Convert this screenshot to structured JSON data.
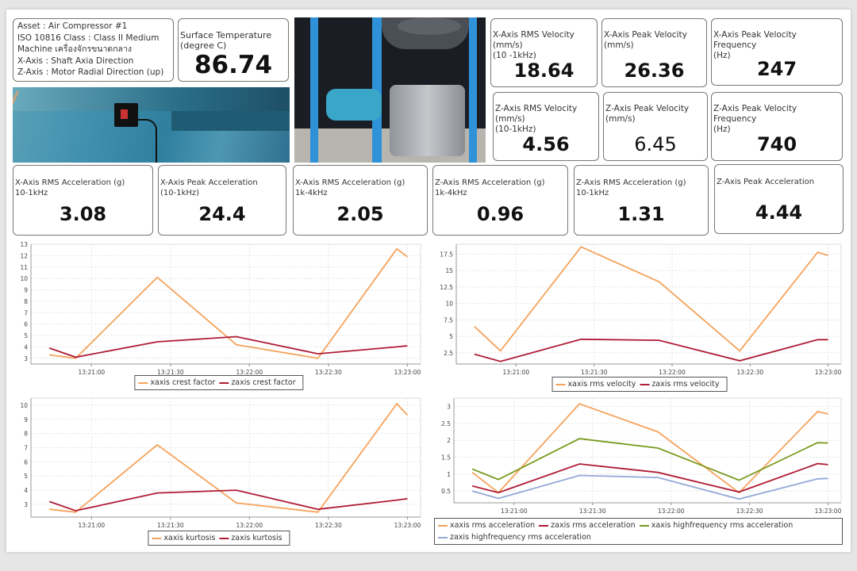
{
  "info": {
    "lines": [
      "Asset : Air Compressor #1",
      "ISO 10816 Class : Class II Medium",
      "Machine เครื่องจักรขนาดกลาง",
      "X-Axis : Shaft Axia Direction",
      "Z-Axis : Motor Radial Direction (up)"
    ]
  },
  "temperature": {
    "label": "Surface Temperature\n(degree C)",
    "value": "86.74"
  },
  "metrics": [
    {
      "label": "X-Axis RMS Velocity\n(mm/s)\n(10 -1kHz)",
      "value": "18.64"
    },
    {
      "label": "X-Axis Peak Velocity\n(mm/s)",
      "value": "26.36"
    },
    {
      "label": "X-Axis Peak Velocity Frequency\n(Hz)",
      "value": "247"
    },
    {
      "label": "Z-Axis RMS Velocity\n(mm/s)\n(10-1kHz)",
      "value": "4.56"
    },
    {
      "label": "Z-Axis Peak Velocity\n(mm/s)",
      "value": "6.45"
    },
    {
      "label": "Z-Axis Peak Velocity Frequency\n(Hz)",
      "value": "740"
    },
    {
      "label": "X-Axis RMS Acceleration (g)\n10-1kHz",
      "value": "3.08"
    },
    {
      "label": "X-Axis Peak Acceleration\n(10-1kHz)",
      "value": "24.4"
    },
    {
      "label": "X-Axis RMS Acceleration (g)\n1k-4kHz",
      "value": "2.05"
    },
    {
      "label": "Z-Axis RMS Acceleration (g)\n1k-4kHz",
      "value": "0.96"
    },
    {
      "label": "Z-Axis RMS Acceleration (g)\n10-1kHz",
      "value": "1.31"
    },
    {
      "label": "Z-Axis Peak Acceleration",
      "value": "4.44"
    }
  ],
  "colors": {
    "orange": "#f5a35c",
    "red": "#b01c35",
    "green": "#7a9a1e",
    "blue": "#94a8d8"
  },
  "chart_data": [
    {
      "type": "line",
      "x": [
        "13:20:44",
        "13:20:54",
        "13:21:25",
        "13:21:55",
        "13:22:26",
        "13:22:56",
        "13:23:00"
      ],
      "xticks": [
        "13:21:00",
        "13:21:30",
        "13:22:00",
        "13:22:30",
        "13:23:00"
      ],
      "xlim": [
        "13:20:37",
        "13:23:05"
      ],
      "yticks": [
        3,
        4,
        5,
        6,
        7,
        8,
        9,
        10,
        11,
        12,
        13
      ],
      "ylim": [
        2.5,
        13
      ],
      "grid": true,
      "legend": "bottom",
      "series": [
        {
          "name": "xaxis crest factor",
          "color": "#f5a35c",
          "values": [
            3.3,
            3.0,
            10.1,
            4.2,
            3.0,
            12.6,
            11.9
          ]
        },
        {
          "name": "zaxis crest factor",
          "color": "#b01c35",
          "values": [
            3.9,
            3.1,
            4.45,
            4.9,
            3.4,
            4.0,
            4.1
          ]
        }
      ]
    },
    {
      "type": "line",
      "x": [
        "13:20:44",
        "13:20:54",
        "13:21:25",
        "13:21:55",
        "13:22:26",
        "13:22:56",
        "13:23:00"
      ],
      "xticks": [
        "13:21:00",
        "13:21:30",
        "13:22:00",
        "13:22:30",
        "13:23:00"
      ],
      "xlim": [
        "13:20:37",
        "13:23:05"
      ],
      "yticks": [
        2.5,
        5,
        7.5,
        10,
        12.5,
        15,
        17.5
      ],
      "ylim": [
        0.8,
        19
      ],
      "grid": true,
      "legend": "bottom",
      "series": [
        {
          "name": "xaxis rms velocity",
          "color": "#f5a35c",
          "values": [
            6.5,
            2.8,
            18.6,
            13.3,
            2.8,
            17.8,
            17.3
          ]
        },
        {
          "name": "zaxis rms velocity",
          "color": "#b01c35",
          "values": [
            2.3,
            1.2,
            4.56,
            4.4,
            1.3,
            4.5,
            4.5
          ]
        }
      ]
    },
    {
      "type": "line",
      "x": [
        "13:20:44",
        "13:20:54",
        "13:21:25",
        "13:21:55",
        "13:22:26",
        "13:22:56",
        "13:23:00"
      ],
      "xticks": [
        "13:21:00",
        "13:21:30",
        "13:22:00",
        "13:22:30",
        "13:23:00"
      ],
      "xlim": [
        "13:20:37",
        "13:23:05"
      ],
      "yticks": [
        3,
        4,
        5,
        6,
        7,
        8,
        9,
        10
      ],
      "ylim": [
        2.1,
        10.5
      ],
      "grid": true,
      "legend": "bottom",
      "series": [
        {
          "name": "xaxis kurtosis",
          "color": "#f5a35c",
          "values": [
            2.65,
            2.45,
            7.2,
            3.1,
            2.45,
            10.1,
            9.3
          ]
        },
        {
          "name": "zaxis kurtosis",
          "color": "#b01c35",
          "values": [
            3.2,
            2.55,
            3.8,
            4.0,
            2.65,
            3.3,
            3.4
          ]
        }
      ]
    },
    {
      "type": "line",
      "x": [
        "13:20:44",
        "13:20:54",
        "13:21:25",
        "13:21:55",
        "13:22:26",
        "13:22:56",
        "13:23:00"
      ],
      "xticks": [
        "13:21:00",
        "13:21:30",
        "13:22:00",
        "13:22:30",
        "13:23:00"
      ],
      "xlim": [
        "13:20:37",
        "13:23:05"
      ],
      "yticks": [
        0.5,
        1,
        1.5,
        2,
        2.5,
        3
      ],
      "ylim": [
        0.15,
        3.25
      ],
      "grid": true,
      "legend": "bottom",
      "series": [
        {
          "name": "xaxis rms acceleration",
          "color": "#f5a35c",
          "values": [
            1.05,
            0.45,
            3.08,
            2.25,
            0.45,
            2.85,
            2.78
          ]
        },
        {
          "name": "zaxis rms acceleration",
          "color": "#b01c35",
          "values": [
            0.65,
            0.45,
            1.3,
            1.05,
            0.47,
            1.31,
            1.28
          ]
        },
        {
          "name": "xaxis highfrequency rms acceleration",
          "color": "#7a9a1e",
          "values": [
            1.15,
            0.84,
            2.05,
            1.77,
            0.82,
            1.93,
            1.92
          ]
        },
        {
          "name": "zaxis highfrequency rms acceleration",
          "color": "#94a8d8",
          "values": [
            0.5,
            0.28,
            0.96,
            0.9,
            0.26,
            0.86,
            0.87
          ]
        }
      ]
    }
  ]
}
